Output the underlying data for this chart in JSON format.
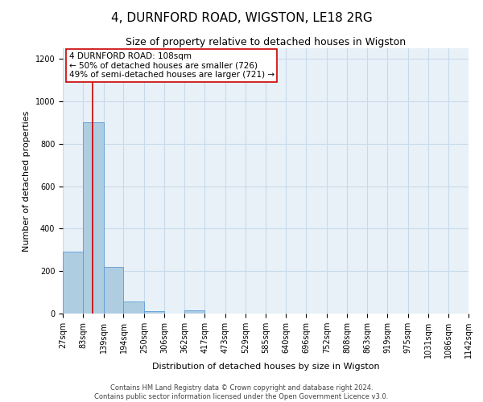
{
  "title": "4, DURNFORD ROAD, WIGSTON, LE18 2RG",
  "subtitle": "Size of property relative to detached houses in Wigston",
  "xlabel": "Distribution of detached houses by size in Wigston",
  "ylabel": "Number of detached properties",
  "bar_edges": [
    27,
    83,
    139,
    194,
    250,
    306,
    362,
    417,
    473,
    529,
    585,
    640,
    696,
    752,
    808,
    863,
    919,
    975,
    1031,
    1086,
    1142
  ],
  "bar_heights": [
    290,
    900,
    220,
    55,
    12,
    0,
    15,
    0,
    0,
    0,
    0,
    0,
    0,
    0,
    0,
    0,
    0,
    0,
    0,
    0
  ],
  "bar_color": "#aecde1",
  "bar_edgecolor": "#5b9bd5",
  "property_line_x": 108,
  "property_line_color": "#cc0000",
  "annotation_text": "4 DURNFORD ROAD: 108sqm\n← 50% of detached houses are smaller (726)\n49% of semi-detached houses are larger (721) →",
  "annotation_box_edgecolor": "#cc0000",
  "annotation_box_facecolor": "#ffffff",
  "ylim": [
    0,
    1250
  ],
  "yticks": [
    0,
    200,
    400,
    600,
    800,
    1000,
    1200
  ],
  "grid_color": "#c8daea",
  "background_color": "#e8f1f8",
  "footer_line1": "Contains HM Land Registry data © Crown copyright and database right 2024.",
  "footer_line2": "Contains public sector information licensed under the Open Government Licence v3.0.",
  "title_fontsize": 11,
  "subtitle_fontsize": 9,
  "axis_label_fontsize": 8,
  "tick_fontsize": 7,
  "annotation_fontsize": 7.5
}
